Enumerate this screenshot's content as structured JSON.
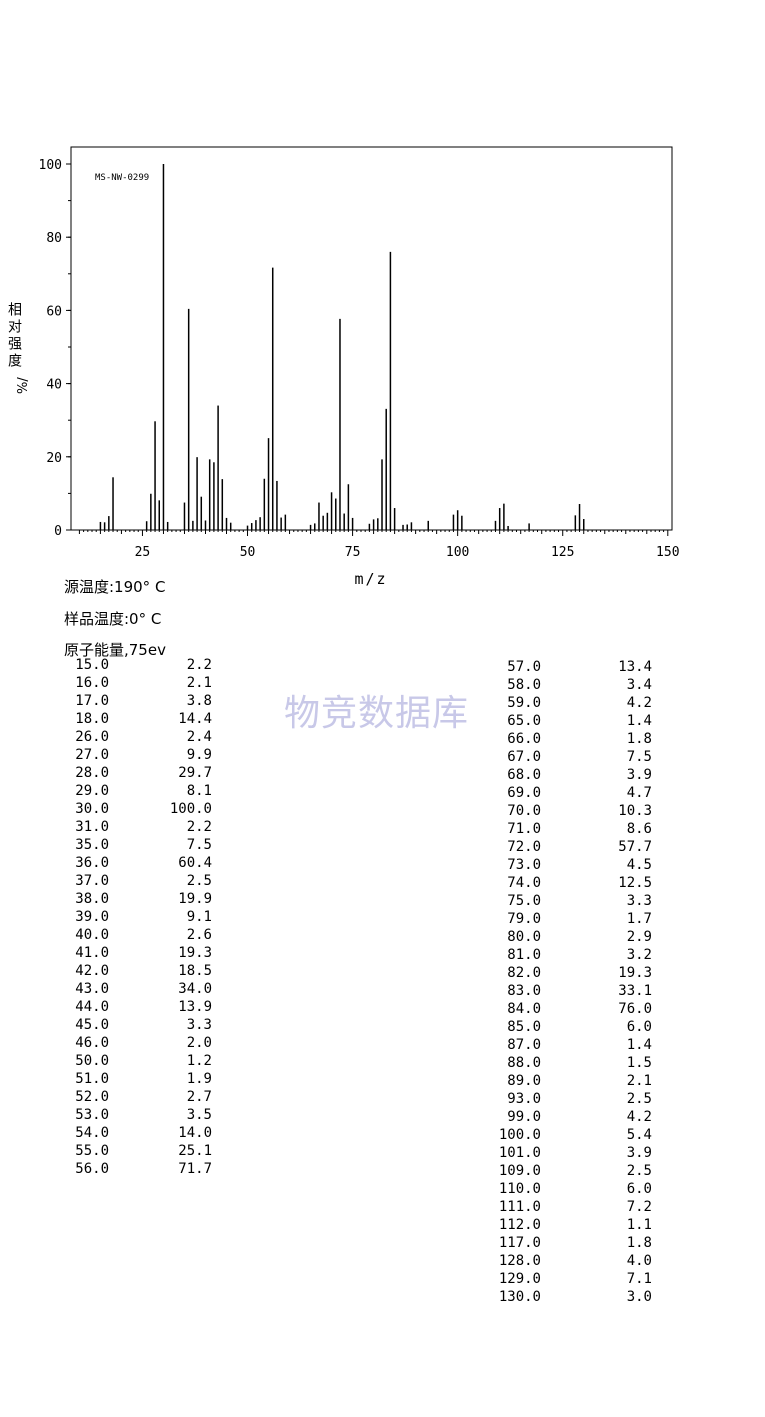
{
  "chart_data": {
    "type": "bar",
    "code_label": "MS-NW-0299",
    "ylabel": "相对强度",
    "ylabel_unit": "%/",
    "xlabel": "m/z",
    "xlim": [
      8,
      151
    ],
    "ylim": [
      0,
      100
    ],
    "x_ticks": [
      25,
      50,
      75,
      100,
      125,
      150
    ],
    "y_ticks": [
      0,
      20,
      40,
      60,
      80,
      100
    ],
    "peaks": [
      [
        15.0,
        2.2
      ],
      [
        16.0,
        2.1
      ],
      [
        17.0,
        3.8
      ],
      [
        18.0,
        14.4
      ],
      [
        26.0,
        2.4
      ],
      [
        27.0,
        9.9
      ],
      [
        28.0,
        29.7
      ],
      [
        29.0,
        8.1
      ],
      [
        30.0,
        100.0
      ],
      [
        31.0,
        2.2
      ],
      [
        35.0,
        7.5
      ],
      [
        36.0,
        60.4
      ],
      [
        37.0,
        2.5
      ],
      [
        38.0,
        19.9
      ],
      [
        39.0,
        9.1
      ],
      [
        40.0,
        2.6
      ],
      [
        41.0,
        19.3
      ],
      [
        42.0,
        18.5
      ],
      [
        43.0,
        34.0
      ],
      [
        44.0,
        13.9
      ],
      [
        45.0,
        3.3
      ],
      [
        46.0,
        2.0
      ],
      [
        50.0,
        1.2
      ],
      [
        51.0,
        1.9
      ],
      [
        52.0,
        2.7
      ],
      [
        53.0,
        3.5
      ],
      [
        54.0,
        14.0
      ],
      [
        55.0,
        25.1
      ],
      [
        56.0,
        71.7
      ],
      [
        57.0,
        13.4
      ],
      [
        58.0,
        3.4
      ],
      [
        59.0,
        4.2
      ],
      [
        65.0,
        1.4
      ],
      [
        66.0,
        1.8
      ],
      [
        67.0,
        7.5
      ],
      [
        68.0,
        3.9
      ],
      [
        69.0,
        4.7
      ],
      [
        70.0,
        10.3
      ],
      [
        71.0,
        8.6
      ],
      [
        72.0,
        57.7
      ],
      [
        73.0,
        4.5
      ],
      [
        74.0,
        12.5
      ],
      [
        75.0,
        3.3
      ],
      [
        79.0,
        1.7
      ],
      [
        80.0,
        2.9
      ],
      [
        81.0,
        3.2
      ],
      [
        82.0,
        19.3
      ],
      [
        83.0,
        33.1
      ],
      [
        84.0,
        76.0
      ],
      [
        85.0,
        6.0
      ],
      [
        87.0,
        1.4
      ],
      [
        88.0,
        1.5
      ],
      [
        89.0,
        2.1
      ],
      [
        93.0,
        2.5
      ],
      [
        99.0,
        4.2
      ],
      [
        100.0,
        5.4
      ],
      [
        101.0,
        3.9
      ],
      [
        109.0,
        2.5
      ],
      [
        110.0,
        6.0
      ],
      [
        111.0,
        7.2
      ],
      [
        112.0,
        1.1
      ],
      [
        117.0,
        1.8
      ],
      [
        128.0,
        4.0
      ],
      [
        129.0,
        7.1
      ],
      [
        130.0,
        3.0
      ]
    ]
  },
  "info": {
    "source_temp": "源温度:190° C",
    "sample_temp": "样品温度:0° C",
    "energy": "原子能量,75ev"
  },
  "watermark": "物竞数据库",
  "table_left": [
    [
      "15.0",
      "2.2"
    ],
    [
      "16.0",
      "2.1"
    ],
    [
      "17.0",
      "3.8"
    ],
    [
      "18.0",
      "14.4"
    ],
    [
      "26.0",
      "2.4"
    ],
    [
      "27.0",
      "9.9"
    ],
    [
      "28.0",
      "29.7"
    ],
    [
      "29.0",
      "8.1"
    ],
    [
      "30.0",
      "100.0"
    ],
    [
      "31.0",
      "2.2"
    ],
    [
      "35.0",
      "7.5"
    ],
    [
      "36.0",
      "60.4"
    ],
    [
      "37.0",
      "2.5"
    ],
    [
      "38.0",
      "19.9"
    ],
    [
      "39.0",
      "9.1"
    ],
    [
      "40.0",
      "2.6"
    ],
    [
      "41.0",
      "19.3"
    ],
    [
      "42.0",
      "18.5"
    ],
    [
      "43.0",
      "34.0"
    ],
    [
      "44.0",
      "13.9"
    ],
    [
      "45.0",
      "3.3"
    ],
    [
      "46.0",
      "2.0"
    ],
    [
      "50.0",
      "1.2"
    ],
    [
      "51.0",
      "1.9"
    ],
    [
      "52.0",
      "2.7"
    ],
    [
      "53.0",
      "3.5"
    ],
    [
      "54.0",
      "14.0"
    ],
    [
      "55.0",
      "25.1"
    ],
    [
      "56.0",
      "71.7"
    ]
  ],
  "table_right": [
    [
      "57.0",
      "13.4"
    ],
    [
      "58.0",
      "3.4"
    ],
    [
      "59.0",
      "4.2"
    ],
    [
      "65.0",
      "1.4"
    ],
    [
      "66.0",
      "1.8"
    ],
    [
      "67.0",
      "7.5"
    ],
    [
      "68.0",
      "3.9"
    ],
    [
      "69.0",
      "4.7"
    ],
    [
      "70.0",
      "10.3"
    ],
    [
      "71.0",
      "8.6"
    ],
    [
      "72.0",
      "57.7"
    ],
    [
      "73.0",
      "4.5"
    ],
    [
      "74.0",
      "12.5"
    ],
    [
      "75.0",
      "3.3"
    ],
    [
      "79.0",
      "1.7"
    ],
    [
      "80.0",
      "2.9"
    ],
    [
      "81.0",
      "3.2"
    ],
    [
      "82.0",
      "19.3"
    ],
    [
      "83.0",
      "33.1"
    ],
    [
      "84.0",
      "76.0"
    ],
    [
      "85.0",
      "6.0"
    ],
    [
      "87.0",
      "1.4"
    ],
    [
      "88.0",
      "1.5"
    ],
    [
      "89.0",
      "2.1"
    ],
    [
      "93.0",
      "2.5"
    ],
    [
      "99.0",
      "4.2"
    ],
    [
      "100.0",
      "5.4"
    ],
    [
      "101.0",
      "3.9"
    ],
    [
      "109.0",
      "2.5"
    ],
    [
      "110.0",
      "6.0"
    ],
    [
      "111.0",
      "7.2"
    ],
    [
      "112.0",
      "1.1"
    ],
    [
      "117.0",
      "1.8"
    ],
    [
      "128.0",
      "4.0"
    ],
    [
      "129.0",
      "7.1"
    ],
    [
      "130.0",
      "3.0"
    ]
  ]
}
